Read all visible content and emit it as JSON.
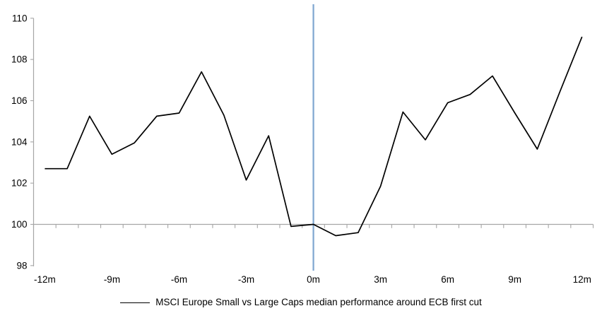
{
  "chart_data": {
    "type": "line",
    "legend": {
      "position": "bottom",
      "entries": [
        "MSCI Europe Small vs Large Caps median performance around ECB first cut"
      ]
    },
    "x_axis": {
      "min": -12,
      "max": 12,
      "ticks": [
        {
          "value": -12,
          "label": "-12m"
        },
        {
          "value": -9,
          "label": "-9m"
        },
        {
          "value": -6,
          "label": "-6m"
        },
        {
          "value": -3,
          "label": "-3m"
        },
        {
          "value": 0,
          "label": "0m"
        },
        {
          "value": 3,
          "label": "3m"
        },
        {
          "value": 6,
          "label": "6m"
        },
        {
          "value": 9,
          "label": "9m"
        },
        {
          "value": 12,
          "label": "12m"
        }
      ],
      "minor_tick_every_month": true
    },
    "y_axis": {
      "min": 98,
      "max": 110,
      "ticks": [
        {
          "value": 110,
          "label": "110"
        },
        {
          "value": 108,
          "label": "108"
        },
        {
          "value": 106,
          "label": "106"
        },
        {
          "value": 104,
          "label": "104"
        },
        {
          "value": 102,
          "label": "102"
        },
        {
          "value": 100,
          "label": "100"
        },
        {
          "value": 98,
          "label": "98"
        }
      ]
    },
    "baseline": {
      "value": 100
    },
    "event_line": {
      "x": 0,
      "color": "#7EA6D0"
    },
    "series": [
      {
        "name": "MSCI Europe Small vs Large Caps median performance around ECB first cut",
        "color": "#000000",
        "x": [
          -12,
          -11,
          -10,
          -9,
          -8,
          -7,
          -6,
          -5,
          -4,
          -3,
          -2,
          -1,
          0,
          1,
          2,
          3,
          4,
          5,
          6,
          7,
          8,
          9,
          10,
          11,
          12
        ],
        "values": [
          102.7,
          102.7,
          105.25,
          103.4,
          103.95,
          105.25,
          105.4,
          107.4,
          105.3,
          102.15,
          104.3,
          99.9,
          100.0,
          99.45,
          99.6,
          101.85,
          105.45,
          104.1,
          105.9,
          106.3,
          107.2,
          105.4,
          103.65,
          106.4,
          109.1
        ]
      }
    ],
    "colors": {
      "axis": "#A6A6A6",
      "text": "#000000",
      "background": "#FFFFFF"
    }
  }
}
